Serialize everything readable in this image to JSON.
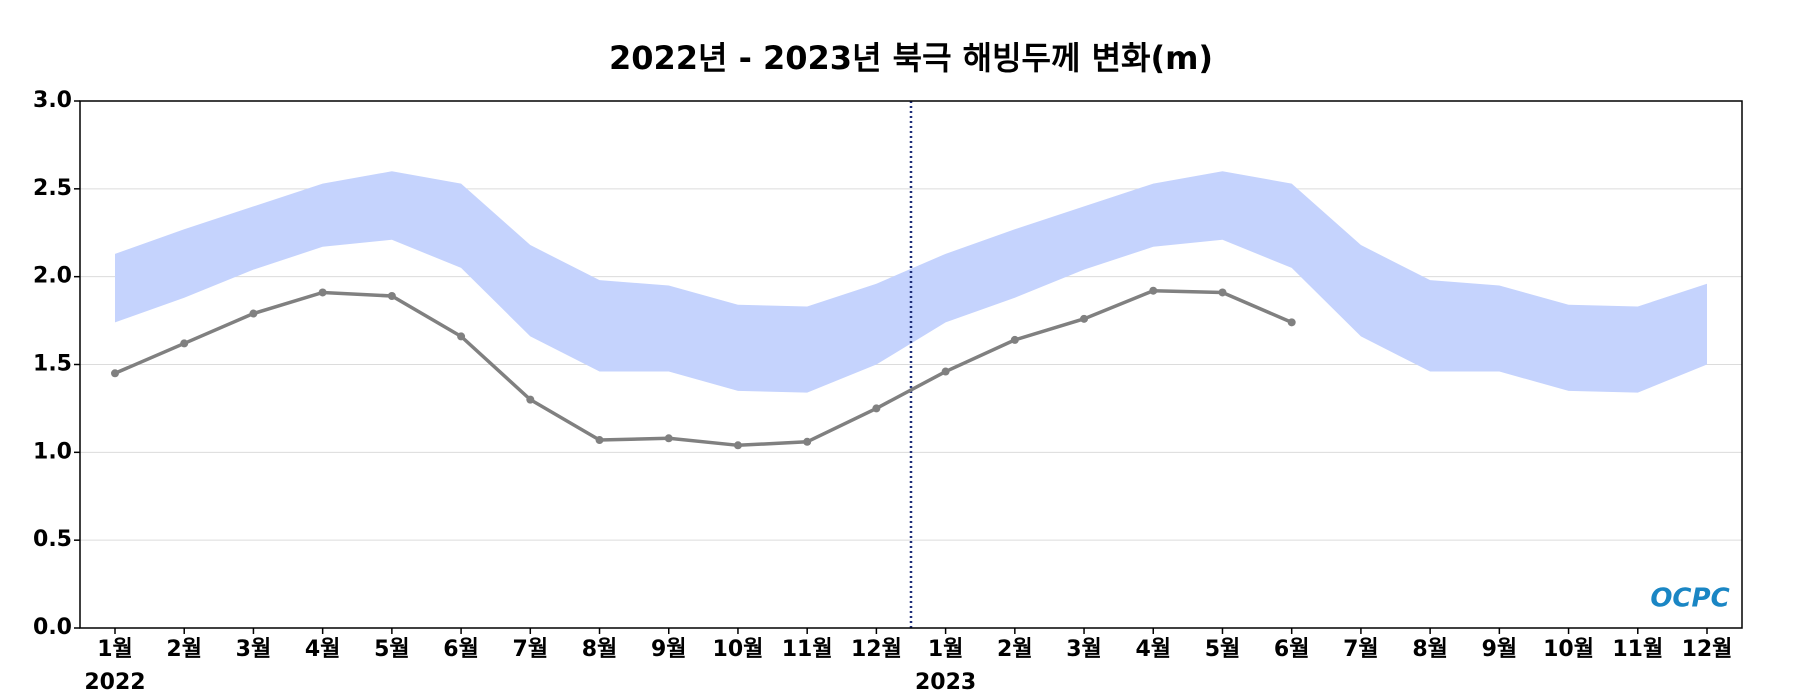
{
  "chart_data": {
    "type": "line",
    "title": "2022년 - 2023년 북극 해빙두께 변화(m)",
    "categories": [
      "1월",
      "2월",
      "3월",
      "4월",
      "5월",
      "6월",
      "7월",
      "8월",
      "9월",
      "10월",
      "11월",
      "12월",
      "1월",
      "2월",
      "3월",
      "4월",
      "5월",
      "6월",
      "7월",
      "8월",
      "9월",
      "10월",
      "11월",
      "12월"
    ],
    "year_labels": [
      "2022",
      "2023"
    ],
    "series": [
      {
        "color": "#808080",
        "values": [
          1.45,
          1.62,
          1.79,
          1.91,
          1.89,
          1.66,
          1.3,
          1.07,
          1.08,
          1.04,
          1.06,
          1.25,
          1.46,
          1.64,
          1.76,
          1.92,
          1.91,
          1.74,
          null,
          null,
          null,
          null,
          null,
          null
        ]
      }
    ],
    "band": {
      "color": "#c5d3fd",
      "upper": [
        2.13,
        2.27,
        2.4,
        2.53,
        2.6,
        2.53,
        2.18,
        1.98,
        1.95,
        1.84,
        1.83,
        1.96,
        2.13,
        2.27,
        2.4,
        2.53,
        2.6,
        2.53,
        2.18,
        1.98,
        1.95,
        1.84,
        1.83,
        1.96
      ],
      "lower": [
        1.74,
        1.88,
        2.04,
        2.17,
        2.21,
        2.05,
        1.66,
        1.46,
        1.46,
        1.35,
        1.34,
        1.5,
        1.74,
        1.88,
        2.04,
        2.17,
        2.21,
        2.05,
        1.66,
        1.46,
        1.46,
        1.35,
        1.34,
        1.5
      ]
    },
    "ylim": [
      0,
      3
    ],
    "yticks": [
      {
        "value": 0,
        "label": "0.0"
      },
      {
        "value": 0.5,
        "label": "0.5"
      },
      {
        "value": 1,
        "label": "1.0"
      },
      {
        "value": 1.5,
        "label": "1.5"
      },
      {
        "value": 2,
        "label": "2.0"
      },
      {
        "value": 2.5,
        "label": "2.5"
      },
      {
        "value": 3,
        "label": "3.0"
      }
    ],
    "grid": true,
    "logo": "OCPC"
  }
}
